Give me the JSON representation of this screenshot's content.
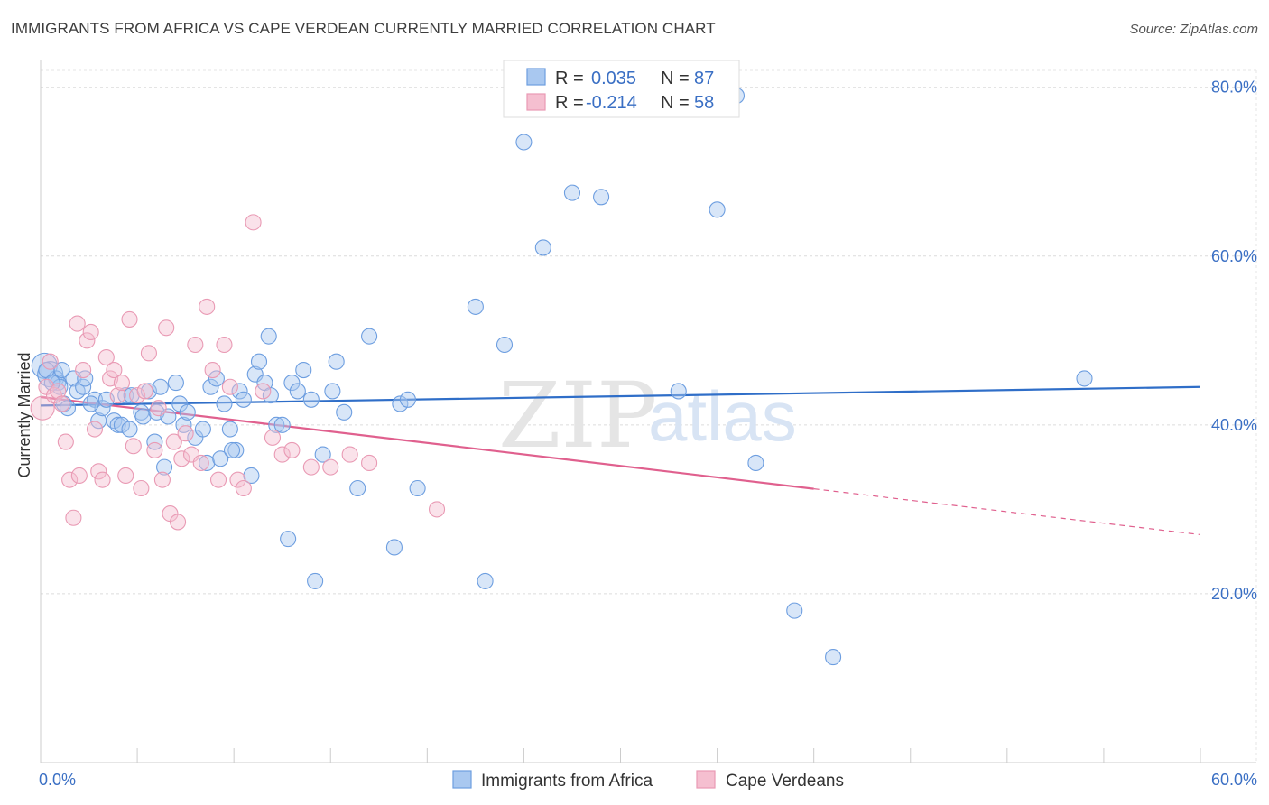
{
  "title": "IMMIGRANTS FROM AFRICA VS CAPE VERDEAN CURRENTLY MARRIED CORRELATION CHART",
  "source": "Source: ZipAtlas.com",
  "watermark": {
    "zip": "ZIP",
    "atlas": "atlas"
  },
  "chart_data": {
    "type": "scatter",
    "title": "IMMIGRANTS FROM AFRICA VS CAPE VERDEAN CURRENTLY MARRIED CORRELATION CHART",
    "xlabel": "",
    "ylabel": "Currently Married",
    "xlim": [
      0,
      60
    ],
    "ylim": [
      0,
      82
    ],
    "x_tick_labels": [
      {
        "value": 0,
        "label": "0.0%"
      },
      {
        "value": 60,
        "label": "60.0%"
      }
    ],
    "y_tick_labels": [
      {
        "value": 20,
        "label": "20.0%"
      },
      {
        "value": 40,
        "label": "40.0%"
      },
      {
        "value": 60,
        "label": "60.0%"
      },
      {
        "value": 80,
        "label": "80.0%"
      }
    ],
    "grid": true,
    "legend_position": "top-center",
    "series": [
      {
        "name": "Immigrants from Africa",
        "color": "#6d9ee0",
        "fill": "#a9c8f0",
        "line_color": "#2f6ec8",
        "R": "0.035",
        "N": "87",
        "trend": {
          "x0": 0,
          "y0": 42.3,
          "x1": 60,
          "y1": 44.5,
          "dashed_from": null
        },
        "points": [
          [
            0.2,
            47.0
          ],
          [
            0.5,
            46.0
          ],
          [
            0.8,
            45.5
          ],
          [
            0.9,
            45.0
          ],
          [
            1.0,
            44.5
          ],
          [
            1.2,
            42.5
          ],
          [
            1.4,
            42.0
          ],
          [
            1.7,
            45.5
          ],
          [
            1.9,
            44.0
          ],
          [
            2.2,
            44.5
          ],
          [
            2.3,
            45.5
          ],
          [
            2.8,
            43.0
          ],
          [
            3.0,
            40.5
          ],
          [
            3.2,
            42.0
          ],
          [
            3.8,
            40.5
          ],
          [
            4.0,
            40.0
          ],
          [
            4.2,
            40.0
          ],
          [
            4.4,
            43.5
          ],
          [
            4.6,
            39.5
          ],
          [
            4.7,
            43.5
          ],
          [
            5.2,
            41.5
          ],
          [
            5.3,
            41.0
          ],
          [
            5.6,
            44.0
          ],
          [
            5.9,
            38.0
          ],
          [
            6.0,
            41.5
          ],
          [
            6.4,
            35.0
          ],
          [
            6.6,
            41.0
          ],
          [
            7.0,
            45.0
          ],
          [
            7.2,
            42.5
          ],
          [
            7.4,
            40.0
          ],
          [
            7.6,
            41.5
          ],
          [
            8.0,
            38.5
          ],
          [
            8.4,
            39.5
          ],
          [
            8.6,
            35.5
          ],
          [
            8.8,
            44.5
          ],
          [
            9.1,
            45.5
          ],
          [
            9.3,
            36.0
          ],
          [
            9.5,
            42.5
          ],
          [
            9.8,
            39.5
          ],
          [
            10.1,
            37.0
          ],
          [
            10.3,
            44.0
          ],
          [
            10.5,
            43.0
          ],
          [
            10.9,
            34.0
          ],
          [
            11.1,
            46.0
          ],
          [
            11.3,
            47.5
          ],
          [
            11.6,
            45.0
          ],
          [
            11.8,
            50.5
          ],
          [
            12.2,
            40.0
          ],
          [
            12.5,
            40.0
          ],
          [
            12.8,
            26.5
          ],
          [
            13.0,
            45.0
          ],
          [
            13.3,
            44.0
          ],
          [
            13.6,
            46.5
          ],
          [
            14.0,
            43.0
          ],
          [
            14.2,
            21.5
          ],
          [
            14.6,
            36.5
          ],
          [
            15.1,
            44.0
          ],
          [
            15.3,
            47.5
          ],
          [
            15.7,
            41.5
          ],
          [
            16.4,
            32.5
          ],
          [
            17.0,
            50.5
          ],
          [
            18.3,
            25.5
          ],
          [
            18.6,
            42.5
          ],
          [
            19.0,
            43.0
          ],
          [
            19.5,
            32.5
          ],
          [
            22.5,
            54.0
          ],
          [
            23.0,
            21.5
          ],
          [
            24.0,
            49.5
          ],
          [
            25.0,
            73.5
          ],
          [
            26.0,
            61.0
          ],
          [
            27.5,
            67.5
          ],
          [
            29.0,
            67.0
          ],
          [
            33.0,
            44.0
          ],
          [
            35.0,
            65.5
          ],
          [
            36.0,
            79.0
          ],
          [
            37.0,
            35.5
          ],
          [
            39.0,
            18.0
          ],
          [
            41.0,
            12.5
          ],
          [
            54.0,
            45.5
          ],
          [
            0.3,
            46.5
          ],
          [
            1.1,
            46.5
          ],
          [
            2.6,
            42.5
          ],
          [
            3.4,
            43.0
          ],
          [
            6.2,
            44.5
          ],
          [
            11.9,
            43.5
          ],
          [
            9.9,
            37.0
          ],
          [
            0.6,
            45.0
          ]
        ]
      },
      {
        "name": "Cape Verdeans",
        "color": "#e99ab4",
        "fill": "#f5bfd0",
        "line_color": "#e0608e",
        "R": "-0.214",
        "N": "58",
        "trend": {
          "x0": 0,
          "y0": 43.3,
          "x1": 60,
          "y1": 27.0,
          "dashed_from": 40.0
        },
        "points": [
          [
            0.1,
            42.0
          ],
          [
            0.3,
            44.5
          ],
          [
            0.5,
            47.5
          ],
          [
            0.7,
            43.5
          ],
          [
            0.9,
            44.0
          ],
          [
            1.1,
            42.5
          ],
          [
            1.3,
            38.0
          ],
          [
            1.5,
            33.5
          ],
          [
            1.7,
            29.0
          ],
          [
            1.9,
            52.0
          ],
          [
            2.0,
            34.0
          ],
          [
            2.2,
            46.5
          ],
          [
            2.4,
            50.0
          ],
          [
            2.6,
            51.0
          ],
          [
            2.8,
            39.5
          ],
          [
            3.0,
            34.5
          ],
          [
            3.2,
            33.5
          ],
          [
            3.4,
            48.0
          ],
          [
            3.6,
            45.5
          ],
          [
            3.8,
            46.5
          ],
          [
            4.0,
            43.5
          ],
          [
            4.2,
            45.0
          ],
          [
            4.4,
            34.0
          ],
          [
            4.6,
            52.5
          ],
          [
            4.8,
            37.5
          ],
          [
            5.0,
            43.5
          ],
          [
            5.2,
            32.5
          ],
          [
            5.4,
            44.0
          ],
          [
            5.6,
            48.5
          ],
          [
            5.9,
            37.0
          ],
          [
            6.1,
            42.0
          ],
          [
            6.3,
            33.5
          ],
          [
            6.5,
            51.5
          ],
          [
            6.7,
            29.5
          ],
          [
            6.9,
            38.0
          ],
          [
            7.1,
            28.5
          ],
          [
            7.3,
            36.0
          ],
          [
            7.5,
            39.0
          ],
          [
            7.8,
            36.5
          ],
          [
            8.0,
            49.5
          ],
          [
            8.3,
            35.5
          ],
          [
            8.6,
            54.0
          ],
          [
            8.9,
            46.5
          ],
          [
            9.2,
            33.5
          ],
          [
            9.5,
            49.5
          ],
          [
            9.8,
            44.5
          ],
          [
            10.2,
            33.5
          ],
          [
            10.5,
            32.5
          ],
          [
            11.0,
            64.0
          ],
          [
            11.5,
            44.0
          ],
          [
            12.0,
            38.5
          ],
          [
            12.5,
            36.5
          ],
          [
            13.0,
            37.0
          ],
          [
            14.0,
            35.0
          ],
          [
            15.0,
            35.0
          ],
          [
            16.0,
            36.5
          ],
          [
            17.0,
            35.5
          ],
          [
            20.5,
            30.0
          ]
        ]
      }
    ]
  },
  "legend": {
    "r_label": "R =",
    "n_label": "N =",
    "rows": [
      {
        "r": "0.035",
        "n": "87"
      },
      {
        "r": "-0.214",
        "n": "58"
      }
    ]
  },
  "bottom_legend": [
    "Immigrants from Africa",
    "Cape Verdeans"
  ]
}
